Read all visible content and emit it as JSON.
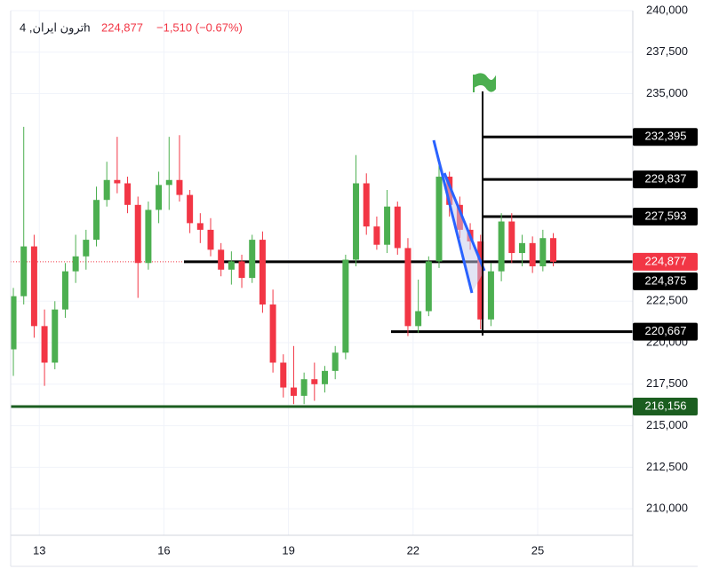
{
  "chart_data": {
    "type": "candlestick",
    "title": "ترون ایران, 4h",
    "change": "−1,510 (−0.67%)",
    "last_price": {
      "value": 224877,
      "label": "224,877"
    },
    "up_color": "#4caf50",
    "down_color": "#f23645",
    "xlim": [
      12.31,
      27.29
    ],
    "ylim": [
      208400,
      240000
    ],
    "xticks": [
      13,
      16,
      19,
      22,
      25
    ],
    "yticks": [
      {
        "value": 210000,
        "label": "210,000"
      },
      {
        "value": 212500,
        "label": "212,500"
      },
      {
        "value": 215000,
        "label": "215,000"
      },
      {
        "value": 217500,
        "label": "217,500"
      },
      {
        "value": 220000,
        "label": "220,000"
      },
      {
        "value": 222500,
        "label": "222,500"
      },
      {
        "value": 235000,
        "label": "235,000"
      },
      {
        "value": 237500,
        "label": "237,500"
      },
      {
        "value": 240000,
        "label": "240,000"
      }
    ],
    "grid": true,
    "levels": [
      {
        "value": 232395,
        "label": "232,395",
        "color": "#000000"
      },
      {
        "value": 229837,
        "label": "229,837",
        "color": "#000000"
      },
      {
        "value": 227593,
        "label": "227,593",
        "color": "#000000"
      },
      {
        "value": 224875,
        "label": "224,875",
        "color": "#000000"
      },
      {
        "value": 220667,
        "label": "220,667",
        "color": "#000000"
      },
      {
        "value": 216156,
        "label": "216,156",
        "color": "#1b5e20"
      }
    ],
    "x": [
      12.375,
      12.625,
      12.875,
      13.125,
      13.375,
      13.625,
      13.875,
      14.125,
      14.375,
      14.625,
      14.875,
      15.125,
      15.375,
      15.625,
      15.875,
      16.125,
      16.375,
      16.625,
      16.875,
      17.125,
      17.375,
      17.625,
      17.875,
      18.125,
      18.375,
      18.625,
      18.875,
      19.125,
      19.375,
      19.625,
      19.875,
      20.125,
      20.375,
      20.625,
      20.875,
      21.125,
      21.375,
      21.625,
      21.875,
      22.125,
      22.375,
      22.625,
      22.875,
      23.125,
      23.375,
      23.625,
      23.875,
      24.125,
      24.375,
      24.625,
      24.875,
      25.125,
      25.375
    ],
    "open": [
      219600,
      222800,
      225800,
      221000,
      218800,
      222000,
      224300,
      225200,
      226200,
      228600,
      229800,
      229600,
      228300,
      224800,
      228000,
      229500,
      229800,
      228900,
      227200,
      226800,
      225600,
      224400,
      224900,
      223900,
      226200,
      222300,
      218800,
      217300,
      216800,
      217800,
      217500,
      218300,
      219400,
      225000,
      229600,
      227000,
      225900,
      228200,
      225700,
      221000,
      221900,
      224900,
      230000,
      228300,
      226800,
      226100,
      221400,
      224300,
      227300,
      225400,
      226000,
      224600,
      226300
    ],
    "high": [
      223300,
      233000,
      226500,
      222000,
      222500,
      224800,
      226500,
      226800,
      229400,
      230900,
      232400,
      230000,
      228800,
      228500,
      230300,
      232400,
      232500,
      229200,
      227800,
      227500,
      226000,
      225500,
      225300,
      226500,
      226700,
      223200,
      219300,
      219800,
      218200,
      218800,
      218600,
      219800,
      225300,
      231300,
      230200,
      227600,
      229200,
      228500,
      226300,
      223800,
      225200,
      230900,
      230300,
      228800,
      227200,
      226500,
      224800,
      227800,
      227800,
      226500,
      226400,
      226800,
      226600
    ],
    "low": [
      218000,
      222300,
      220300,
      217400,
      218400,
      221500,
      223600,
      224400,
      225800,
      228200,
      229000,
      227800,
      222700,
      224400,
      227200,
      228000,
      228500,
      226600,
      226000,
      225200,
      224000,
      223500,
      223300,
      223600,
      221800,
      218200,
      216700,
      216300,
      216300,
      216500,
      217000,
      217800,
      219000,
      224600,
      226500,
      225600,
      225400,
      225300,
      220400,
      220600,
      221600,
      224500,
      227600,
      226300,
      225600,
      220800,
      221000,
      223700,
      224800,
      224600,
      224200,
      224300,
      224600
    ],
    "close": [
      222800,
      225800,
      221000,
      218800,
      222000,
      224300,
      225200,
      226200,
      228600,
      229800,
      229600,
      228300,
      224800,
      228000,
      229500,
      229800,
      228900,
      227200,
      226800,
      225600,
      224400,
      224900,
      223900,
      226200,
      222300,
      218800,
      217300,
      216800,
      217800,
      217500,
      218300,
      219400,
      225000,
      229600,
      227000,
      225900,
      228200,
      225700,
      221000,
      221900,
      224900,
      230000,
      228300,
      226800,
      226100,
      221400,
      224300,
      227300,
      225400,
      226000,
      224600,
      226300,
      224877
    ]
  }
}
